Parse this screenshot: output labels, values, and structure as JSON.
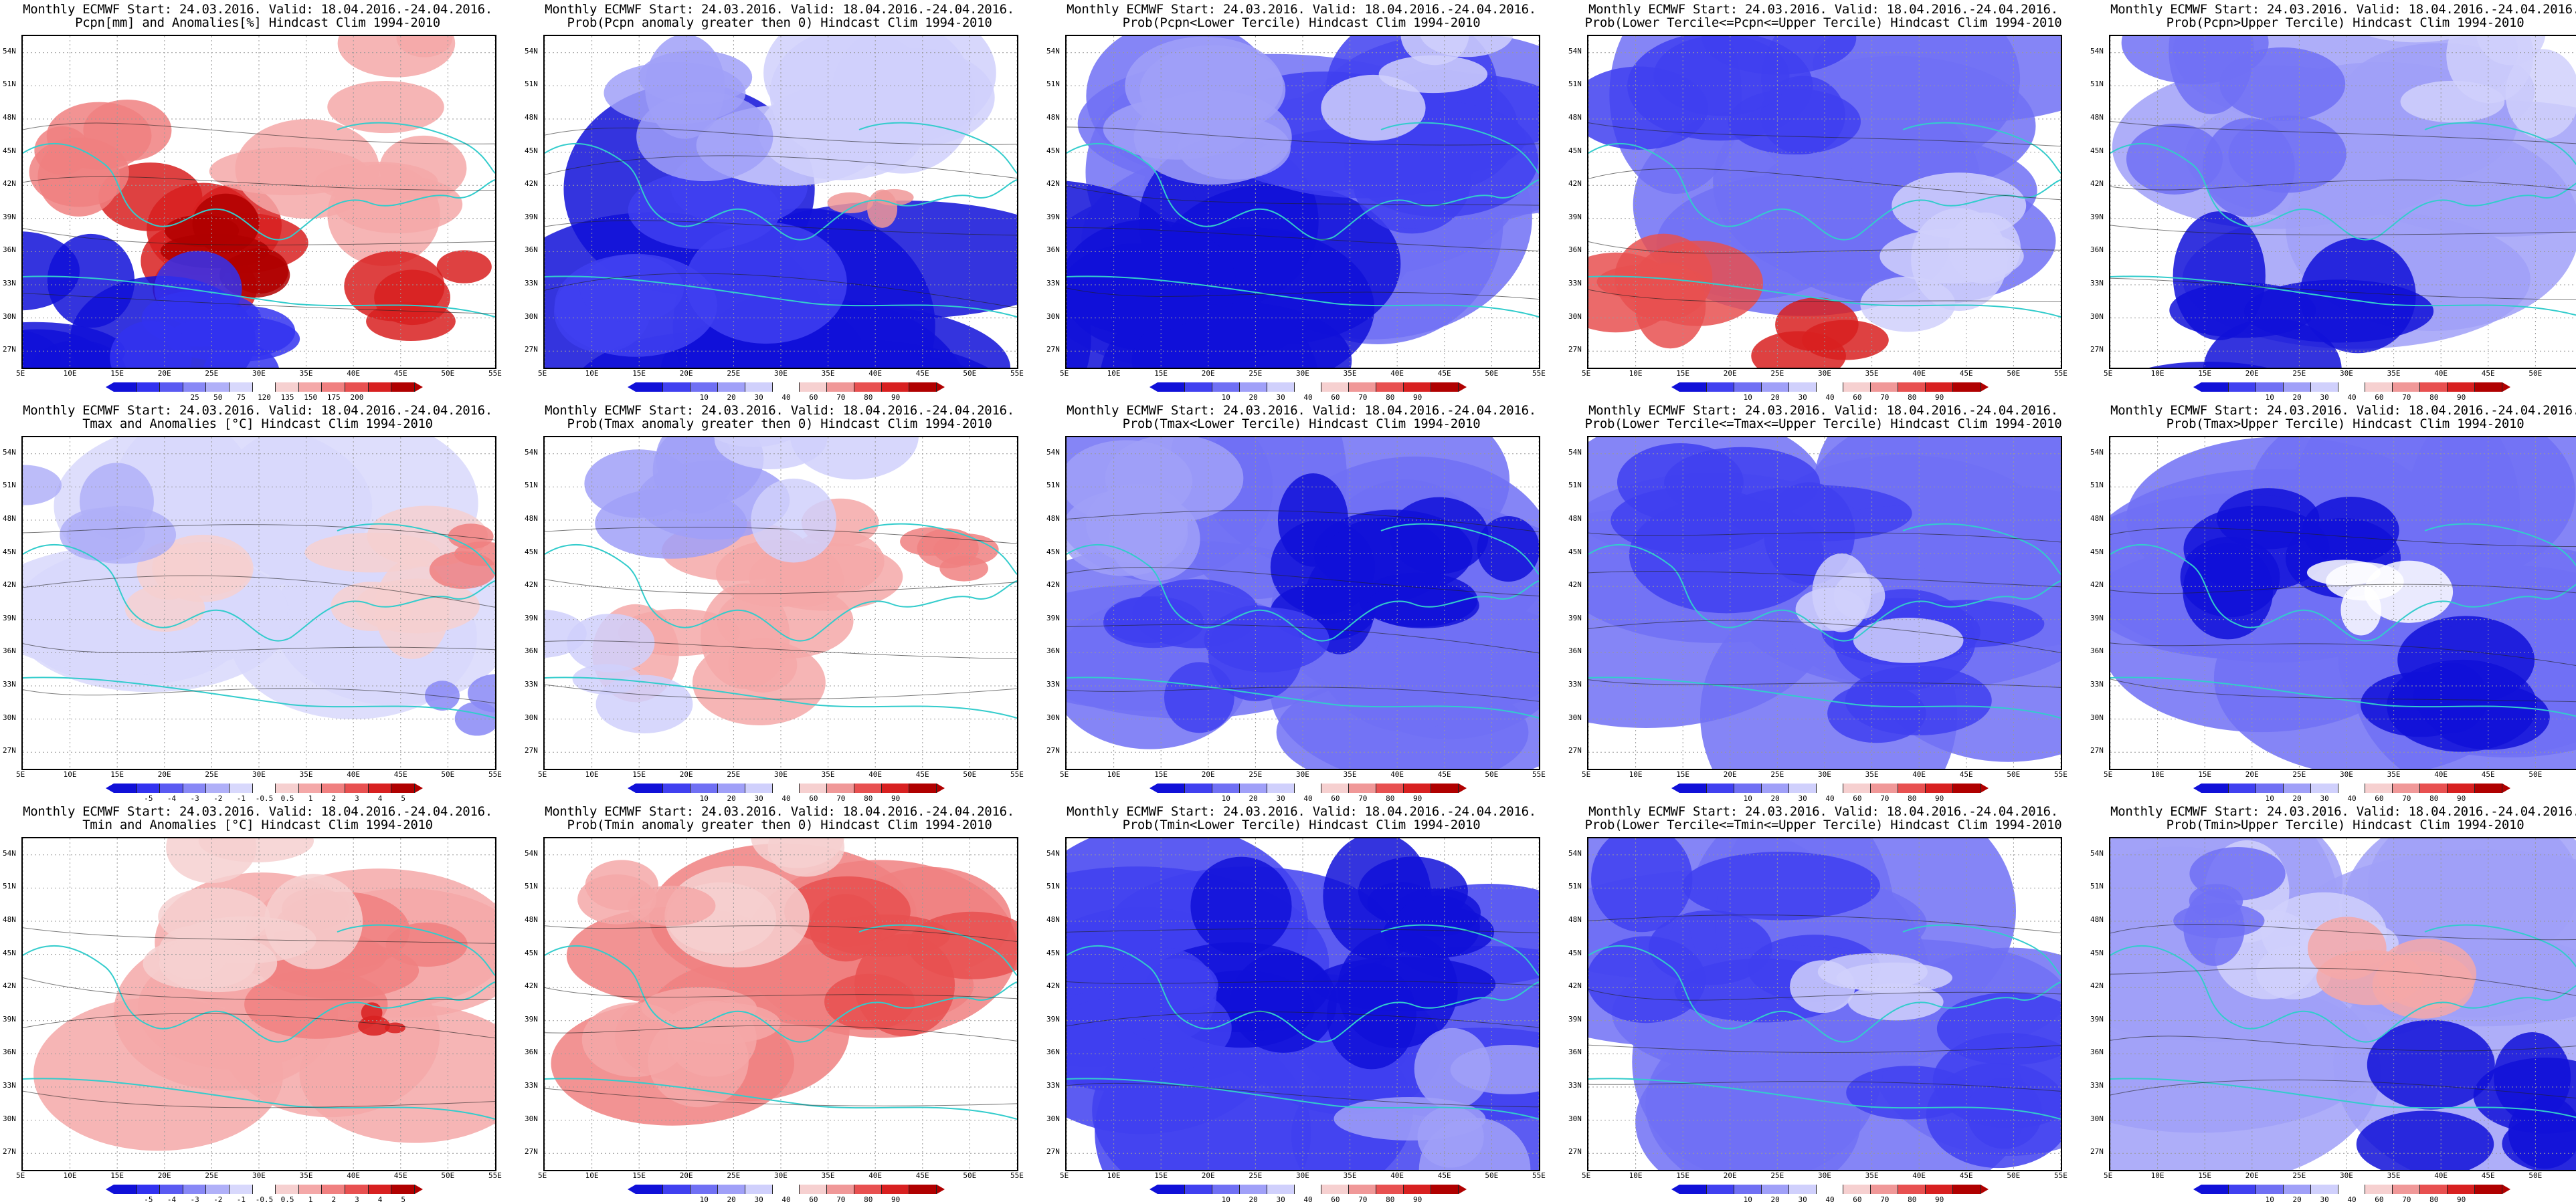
{
  "colors": {
    "coast": "#33cccc",
    "contour": "#222222",
    "anom": [
      "#1010d8",
      "#3232f0",
      "#5a5af2",
      "#8888f6",
      "#b0b0f8",
      "#d8d8fc",
      "#ffffff",
      "#f6d0d0",
      "#f4a8a8",
      "#f08080",
      "#e85050",
      "#d82020",
      "#b00000"
    ],
    "prob": [
      "#1010d8",
      "#4040f0",
      "#7070f4",
      "#a0a0f8",
      "#d0d0fc",
      "#ffffff",
      "#f6d0d0",
      "#f09898",
      "#e85050",
      "#d82020",
      "#b00000"
    ]
  },
  "colorbars": {
    "pcpn": [
      "25",
      "50",
      "75",
      "120",
      "135",
      "150",
      "175",
      "200"
    ],
    "anom": [
      "-5",
      "-4",
      "-3",
      "-2",
      "-1",
      "-0.5",
      "0.5",
      "1",
      "2",
      "3",
      "4",
      "5"
    ],
    "prob": [
      "10",
      "20",
      "30",
      "40",
      "60",
      "70",
      "80",
      "90"
    ]
  },
  "chart_data": [
    {
      "type": "heatmap",
      "title": "Monthly ECMWF Start: 24.03.2016. Valid: 18.04.2016.-24.04.2016.",
      "subtitle": "Pcpn[mm] and Anomalies[%] Hindcast Clim 1994-2010",
      "xlabel": "",
      "ylabel": "",
      "x_ticks": [
        "5E",
        "10E",
        "15E",
        "20E",
        "25E",
        "30E",
        "35E",
        "40E",
        "45E",
        "50E",
        "55E"
      ],
      "y_ticks": [
        "27N",
        "30N",
        "33N",
        "36N",
        "39N",
        "42N",
        "45N",
        "48N",
        "51N",
        "54N"
      ],
      "xlim": [
        5,
        55
      ],
      "ylim": [
        25.5,
        55.5
      ],
      "legend": "pcpn",
      "pattern": "pcpn_anom"
    },
    {
      "type": "heatmap",
      "title": "Monthly ECMWF Start: 24.03.2016. Valid: 18.04.2016.-24.04.2016.",
      "subtitle": "Prob(Pcpn anomaly greater then 0) Hindcast Clim 1994-2010",
      "xlabel": "",
      "ylabel": "",
      "x_ticks": [
        "5E",
        "10E",
        "15E",
        "20E",
        "25E",
        "30E",
        "35E",
        "40E",
        "45E",
        "50E",
        "55E"
      ],
      "y_ticks": [
        "27N",
        "30N",
        "33N",
        "36N",
        "39N",
        "42N",
        "45N",
        "48N",
        "51N",
        "54N"
      ],
      "xlim": [
        5,
        55
      ],
      "ylim": [
        25.5,
        55.5
      ],
      "legend": "prob",
      "pattern": "pcpn_pos"
    },
    {
      "type": "heatmap",
      "title": "Monthly ECMWF Start: 24.03.2016. Valid: 18.04.2016.-24.04.2016.",
      "subtitle": "Prob(Pcpn<Lower Tercile) Hindcast Clim 1994-2010",
      "xlabel": "",
      "ylabel": "",
      "x_ticks": [
        "5E",
        "10E",
        "15E",
        "20E",
        "25E",
        "30E",
        "35E",
        "40E",
        "45E",
        "50E",
        "55E"
      ],
      "y_ticks": [
        "27N",
        "30N",
        "33N",
        "36N",
        "39N",
        "42N",
        "45N",
        "48N",
        "51N",
        "54N"
      ],
      "xlim": [
        5,
        55
      ],
      "ylim": [
        25.5,
        55.5
      ],
      "legend": "prob",
      "pattern": "pcpn_lower"
    },
    {
      "type": "heatmap",
      "title": "Monthly ECMWF Start: 24.03.2016. Valid: 18.04.2016.-24.04.2016.",
      "subtitle": "Prob(Lower Tercile<=Pcpn<=Upper Tercile) Hindcast Clim 1994-2010",
      "xlabel": "",
      "ylabel": "",
      "x_ticks": [
        "5E",
        "10E",
        "15E",
        "20E",
        "25E",
        "30E",
        "35E",
        "40E",
        "45E",
        "50E",
        "55E"
      ],
      "y_ticks": [
        "27N",
        "30N",
        "33N",
        "36N",
        "39N",
        "42N",
        "45N",
        "48N",
        "51N",
        "54N"
      ],
      "xlim": [
        5,
        55
      ],
      "ylim": [
        25.5,
        55.5
      ],
      "legend": "prob",
      "pattern": "pcpn_mid"
    },
    {
      "type": "heatmap",
      "title": "Monthly ECMWF Start: 24.03.2016. Valid: 18.04.2016.-24.04.2016.",
      "subtitle": "Prob(Pcpn>Upper Tercile) Hindcast Clim 1994-2010",
      "xlabel": "",
      "ylabel": "",
      "x_ticks": [
        "5E",
        "10E",
        "15E",
        "20E",
        "25E",
        "30E",
        "35E",
        "40E",
        "45E",
        "50E",
        "55E"
      ],
      "y_ticks": [
        "27N",
        "30N",
        "33N",
        "36N",
        "39N",
        "42N",
        "45N",
        "48N",
        "51N",
        "54N"
      ],
      "xlim": [
        5,
        55
      ],
      "ylim": [
        25.5,
        55.5
      ],
      "legend": "prob",
      "pattern": "pcpn_upper"
    },
    {
      "type": "heatmap",
      "title": "Monthly ECMWF Start: 24.03.2016. Valid: 18.04.2016.-24.04.2016.",
      "subtitle": "Tmax and Anomalies [°C] Hindcast Clim 1994-2010",
      "xlabel": "",
      "ylabel": "",
      "x_ticks": [
        "5E",
        "10E",
        "15E",
        "20E",
        "25E",
        "30E",
        "35E",
        "40E",
        "45E",
        "50E",
        "55E"
      ],
      "y_ticks": [
        "27N",
        "30N",
        "33N",
        "36N",
        "39N",
        "42N",
        "45N",
        "48N",
        "51N",
        "54N"
      ],
      "xlim": [
        5,
        55
      ],
      "ylim": [
        25.5,
        55.5
      ],
      "legend": "anom",
      "pattern": "t_anom_weak"
    },
    {
      "type": "heatmap",
      "title": "Monthly ECMWF Start: 24.03.2016. Valid: 18.04.2016.-24.04.2016.",
      "subtitle": "Prob(Tmax anomaly greater then 0) Hindcast Clim 1994-2010",
      "xlabel": "",
      "ylabel": "",
      "x_ticks": [
        "5E",
        "10E",
        "15E",
        "20E",
        "25E",
        "30E",
        "35E",
        "40E",
        "45E",
        "50E",
        "55E"
      ],
      "y_ticks": [
        "27N",
        "30N",
        "33N",
        "36N",
        "39N",
        "42N",
        "45N",
        "48N",
        "51N",
        "54N"
      ],
      "xlim": [
        5,
        55
      ],
      "ylim": [
        25.5,
        55.5
      ],
      "legend": "prob",
      "pattern": "t_pos"
    },
    {
      "type": "heatmap",
      "title": "Monthly ECMWF Start: 24.03.2016. Valid: 18.04.2016.-24.04.2016.",
      "subtitle": "Prob(Tmax<Lower Tercile) Hindcast Clim 1994-2010",
      "xlabel": "",
      "ylabel": "",
      "x_ticks": [
        "5E",
        "10E",
        "15E",
        "20E",
        "25E",
        "30E",
        "35E",
        "40E",
        "45E",
        "50E",
        "55E"
      ],
      "y_ticks": [
        "27N",
        "30N",
        "33N",
        "36N",
        "39N",
        "42N",
        "45N",
        "48N",
        "51N",
        "54N"
      ],
      "xlim": [
        5,
        55
      ],
      "ylim": [
        25.5,
        55.5
      ],
      "legend": "prob",
      "pattern": "t_lower"
    },
    {
      "type": "heatmap",
      "title": "Monthly ECMWF Start: 24.03.2016. Valid: 18.04.2016.-24.04.2016.",
      "subtitle": "Prob(Lower Tercile<=Tmax<=Upper Tercile) Hindcast Clim 1994-2010",
      "xlabel": "",
      "ylabel": "",
      "x_ticks": [
        "5E",
        "10E",
        "15E",
        "20E",
        "25E",
        "30E",
        "35E",
        "40E",
        "45E",
        "50E",
        "55E"
      ],
      "y_ticks": [
        "27N",
        "30N",
        "33N",
        "36N",
        "39N",
        "42N",
        "45N",
        "48N",
        "51N",
        "54N"
      ],
      "xlim": [
        5,
        55
      ],
      "ylim": [
        25.5,
        55.5
      ],
      "legend": "prob",
      "pattern": "t_mid"
    },
    {
      "type": "heatmap",
      "title": "Monthly ECMWF Start: 24.03.2016. Valid: 18.04.2016.-24.04.2016.",
      "subtitle": "Prob(Tmax>Upper Tercile) Hindcast Clim 1994-2010",
      "xlabel": "",
      "ylabel": "",
      "x_ticks": [
        "5E",
        "10E",
        "15E",
        "20E",
        "25E",
        "30E",
        "35E",
        "40E",
        "45E",
        "50E",
        "55E"
      ],
      "y_ticks": [
        "27N",
        "30N",
        "33N",
        "36N",
        "39N",
        "42N",
        "45N",
        "48N",
        "51N",
        "54N"
      ],
      "xlim": [
        5,
        55
      ],
      "ylim": [
        25.5,
        55.5
      ],
      "legend": "prob",
      "pattern": "t_upper"
    },
    {
      "type": "heatmap",
      "title": "Monthly ECMWF Start: 24.03.2016. Valid: 18.04.2016.-24.04.2016.",
      "subtitle": "Tmin and Anomalies [°C] Hindcast Clim 1994-2010",
      "xlabel": "",
      "ylabel": "",
      "x_ticks": [
        "5E",
        "10E",
        "15E",
        "20E",
        "25E",
        "30E",
        "35E",
        "40E",
        "45E",
        "50E",
        "55E"
      ],
      "y_ticks": [
        "27N",
        "30N",
        "33N",
        "36N",
        "39N",
        "42N",
        "45N",
        "48N",
        "51N",
        "54N"
      ],
      "xlim": [
        5,
        55
      ],
      "ylim": [
        25.5,
        55.5
      ],
      "legend": "anom",
      "pattern": "t_anom_warm"
    },
    {
      "type": "heatmap",
      "title": "Monthly ECMWF Start: 24.03.2016. Valid: 18.04.2016.-24.04.2016.",
      "subtitle": "Prob(Tmin anomaly greater then 0) Hindcast Clim 1994-2010",
      "xlabel": "",
      "ylabel": "",
      "x_ticks": [
        "5E",
        "10E",
        "15E",
        "20E",
        "25E",
        "30E",
        "35E",
        "40E",
        "45E",
        "50E",
        "55E"
      ],
      "y_ticks": [
        "27N",
        "30N",
        "33N",
        "36N",
        "39N",
        "42N",
        "45N",
        "48N",
        "51N",
        "54N"
      ],
      "xlim": [
        5,
        55
      ],
      "ylim": [
        25.5,
        55.5
      ],
      "legend": "prob",
      "pattern": "tmin_pos"
    },
    {
      "type": "heatmap",
      "title": "Monthly ECMWF Start: 24.03.2016. Valid: 18.04.2016.-24.04.2016.",
      "subtitle": "Prob(Tmin<Lower Tercile) Hindcast Clim 1994-2010",
      "xlabel": "",
      "ylabel": "",
      "x_ticks": [
        "5E",
        "10E",
        "15E",
        "20E",
        "25E",
        "30E",
        "35E",
        "40E",
        "45E",
        "50E",
        "55E"
      ],
      "y_ticks": [
        "27N",
        "30N",
        "33N",
        "36N",
        "39N",
        "42N",
        "45N",
        "48N",
        "51N",
        "54N"
      ],
      "xlim": [
        5,
        55
      ],
      "ylim": [
        25.5,
        55.5
      ],
      "legend": "prob",
      "pattern": "tmin_lower"
    },
    {
      "type": "heatmap",
      "title": "Monthly ECMWF Start: 24.03.2016. Valid: 18.04.2016.-24.04.2016.",
      "subtitle": "Prob(Lower Tercile<=Tmin<=Upper Tercile) Hindcast Clim 1994-2010",
      "xlabel": "",
      "ylabel": "",
      "x_ticks": [
        "5E",
        "10E",
        "15E",
        "20E",
        "25E",
        "30E",
        "35E",
        "40E",
        "45E",
        "50E",
        "55E"
      ],
      "y_ticks": [
        "27N",
        "30N",
        "33N",
        "36N",
        "39N",
        "42N",
        "45N",
        "48N",
        "51N",
        "54N"
      ],
      "xlim": [
        5,
        55
      ],
      "ylim": [
        25.5,
        55.5
      ],
      "legend": "prob",
      "pattern": "t_mid"
    },
    {
      "type": "heatmap",
      "title": "Monthly ECMWF Start: 24.03.2016. Valid: 18.04.2016.-24.04.2016.",
      "subtitle": "Prob(Tmin>Upper Tercile) Hindcast Clim 1994-2010",
      "xlabel": "",
      "ylabel": "",
      "x_ticks": [
        "5E",
        "10E",
        "15E",
        "20E",
        "25E",
        "30E",
        "35E",
        "40E",
        "45E",
        "50E",
        "55E"
      ],
      "y_ticks": [
        "27N",
        "30N",
        "33N",
        "36N",
        "39N",
        "42N",
        "45N",
        "48N",
        "51N",
        "54N"
      ],
      "xlim": [
        5,
        55
      ],
      "ylim": [
        25.5,
        55.5
      ],
      "legend": "prob",
      "pattern": "tmin_upper"
    }
  ]
}
